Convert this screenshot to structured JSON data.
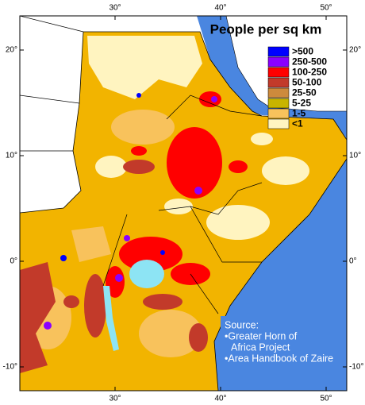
{
  "map": {
    "title": "People per sq km",
    "legend": {
      "items": [
        {
          "label": ">500",
          "color": "#0000ff"
        },
        {
          "label": "250-500",
          "color": "#8a00ff"
        },
        {
          "label": "100-250",
          "color": "#ff0000"
        },
        {
          "label": "50-100",
          "color": "#c23a2a"
        },
        {
          "label": "25-50",
          "color": "#cd8a3c"
        },
        {
          "label": "5-25",
          "color": "#c8b400"
        },
        {
          "label": "1-5",
          "color": "#f8c25c"
        },
        {
          "label": "<1",
          "color": "#fff4c0"
        }
      ]
    },
    "lon_ticks": [
      {
        "value": 30,
        "label": "30°"
      },
      {
        "value": 40,
        "label": "40°"
      },
      {
        "value": 50,
        "label": "50°"
      }
    ],
    "lat_ticks": [
      {
        "value": 20,
        "label": "20°"
      },
      {
        "value": 10,
        "label": "10°"
      },
      {
        "value": 0,
        "label": "0°"
      },
      {
        "value": -10,
        "label": "-10°"
      }
    ],
    "source": [
      "Source:",
      "•Greater Horn of",
      "Africa Project",
      "•Area Handbook of Zaire"
    ]
  }
}
